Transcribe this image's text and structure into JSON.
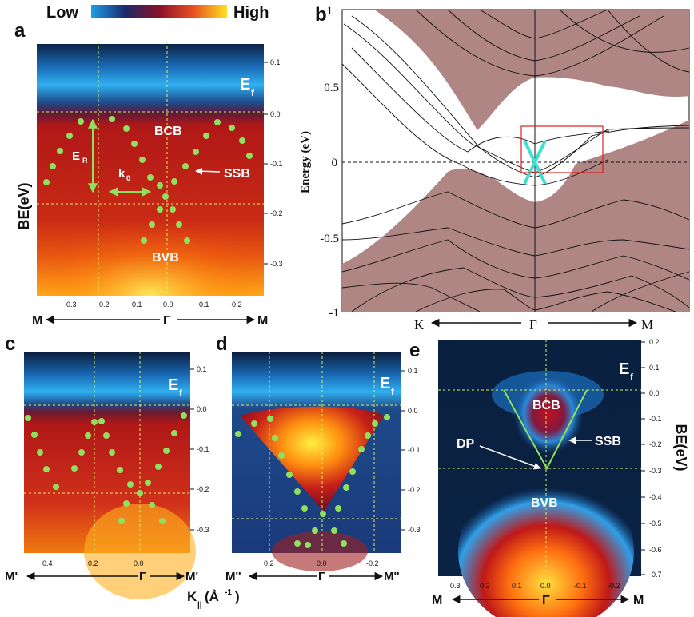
{
  "colorbar": {
    "low": "Low",
    "high": "High"
  },
  "panel_a": {
    "letter": "a",
    "ylabel": "BE(eV)",
    "ef": "E",
    "ef_sub": "f",
    "bcb": "BCB",
    "ssb": "SSB",
    "bvb": "BVB",
    "er": "E",
    "er_sub": "R",
    "k0": "k",
    "k0_sub": "0",
    "yticks": [
      "0.1",
      "0.0",
      "-0.1",
      "-0.2",
      "-0.3"
    ],
    "xticks": [
      "0.3",
      "0.2",
      "0.1",
      "0.0",
      "-0.1",
      "-0.2"
    ],
    "axis_left": "M",
    "axis_mid": "Γ",
    "axis_right": "M"
  },
  "panel_b": {
    "letter": "b",
    "ylabel": "Energy (eV)",
    "yticks": [
      "1",
      "0.5",
      "0",
      "-0.5",
      "-1"
    ],
    "axis_left": "K",
    "axis_mid": "Γ",
    "axis_right": "M"
  },
  "panel_c": {
    "letter": "c",
    "ef": "E",
    "ef_sub": "f",
    "yticks": [
      "0.1",
      "0.0",
      "-0.1",
      "-0.2",
      "-0.3"
    ],
    "xticks": [
      "0.4",
      "0.2",
      "0.0"
    ],
    "axis_left": "M'",
    "axis_mid": "Γ",
    "axis_right": "M'",
    "xlabel": "K",
    "xlabel_sub": "||",
    "xlabel_unit": "(Å",
    "xlabel_sup": "-1",
    "xlabel_close": ")"
  },
  "panel_d": {
    "letter": "d",
    "ef": "E",
    "ef_sub": "f",
    "yticks": [
      "0.1",
      "0.0",
      "-0.1",
      "-0.2",
      "-0.3"
    ],
    "xticks": [
      "0.2",
      "0.0",
      "-0.2"
    ],
    "axis_left": "M''",
    "axis_mid": "Γ",
    "axis_right": "M''"
  },
  "panel_e": {
    "letter": "e",
    "ylabel": "BE(eV)",
    "ef": "E",
    "ef_sub": "f",
    "bcb": "BCB",
    "ssb": "SSB",
    "dp": "DP",
    "bvb": "BVB",
    "yticks": [
      "0.2",
      "0.1",
      "0.0",
      "-0.1",
      "-0.2",
      "-0.3",
      "-0.4",
      "-0.5",
      "-0.6",
      "-0.7"
    ],
    "xticks": [
      "0.3",
      "0.2",
      "0.1",
      "0.0",
      "-0.1",
      "-0.2"
    ],
    "axis_left": "M",
    "axis_mid": "Γ",
    "axis_right": "M"
  },
  "colors": {
    "cold": "#0a1a3a",
    "blue": "#1aa0e0",
    "red": "#b01818",
    "hot": "#ffe000",
    "band_fill": "#b08684",
    "dots": "#90e060",
    "cone": "#40e0d0"
  }
}
